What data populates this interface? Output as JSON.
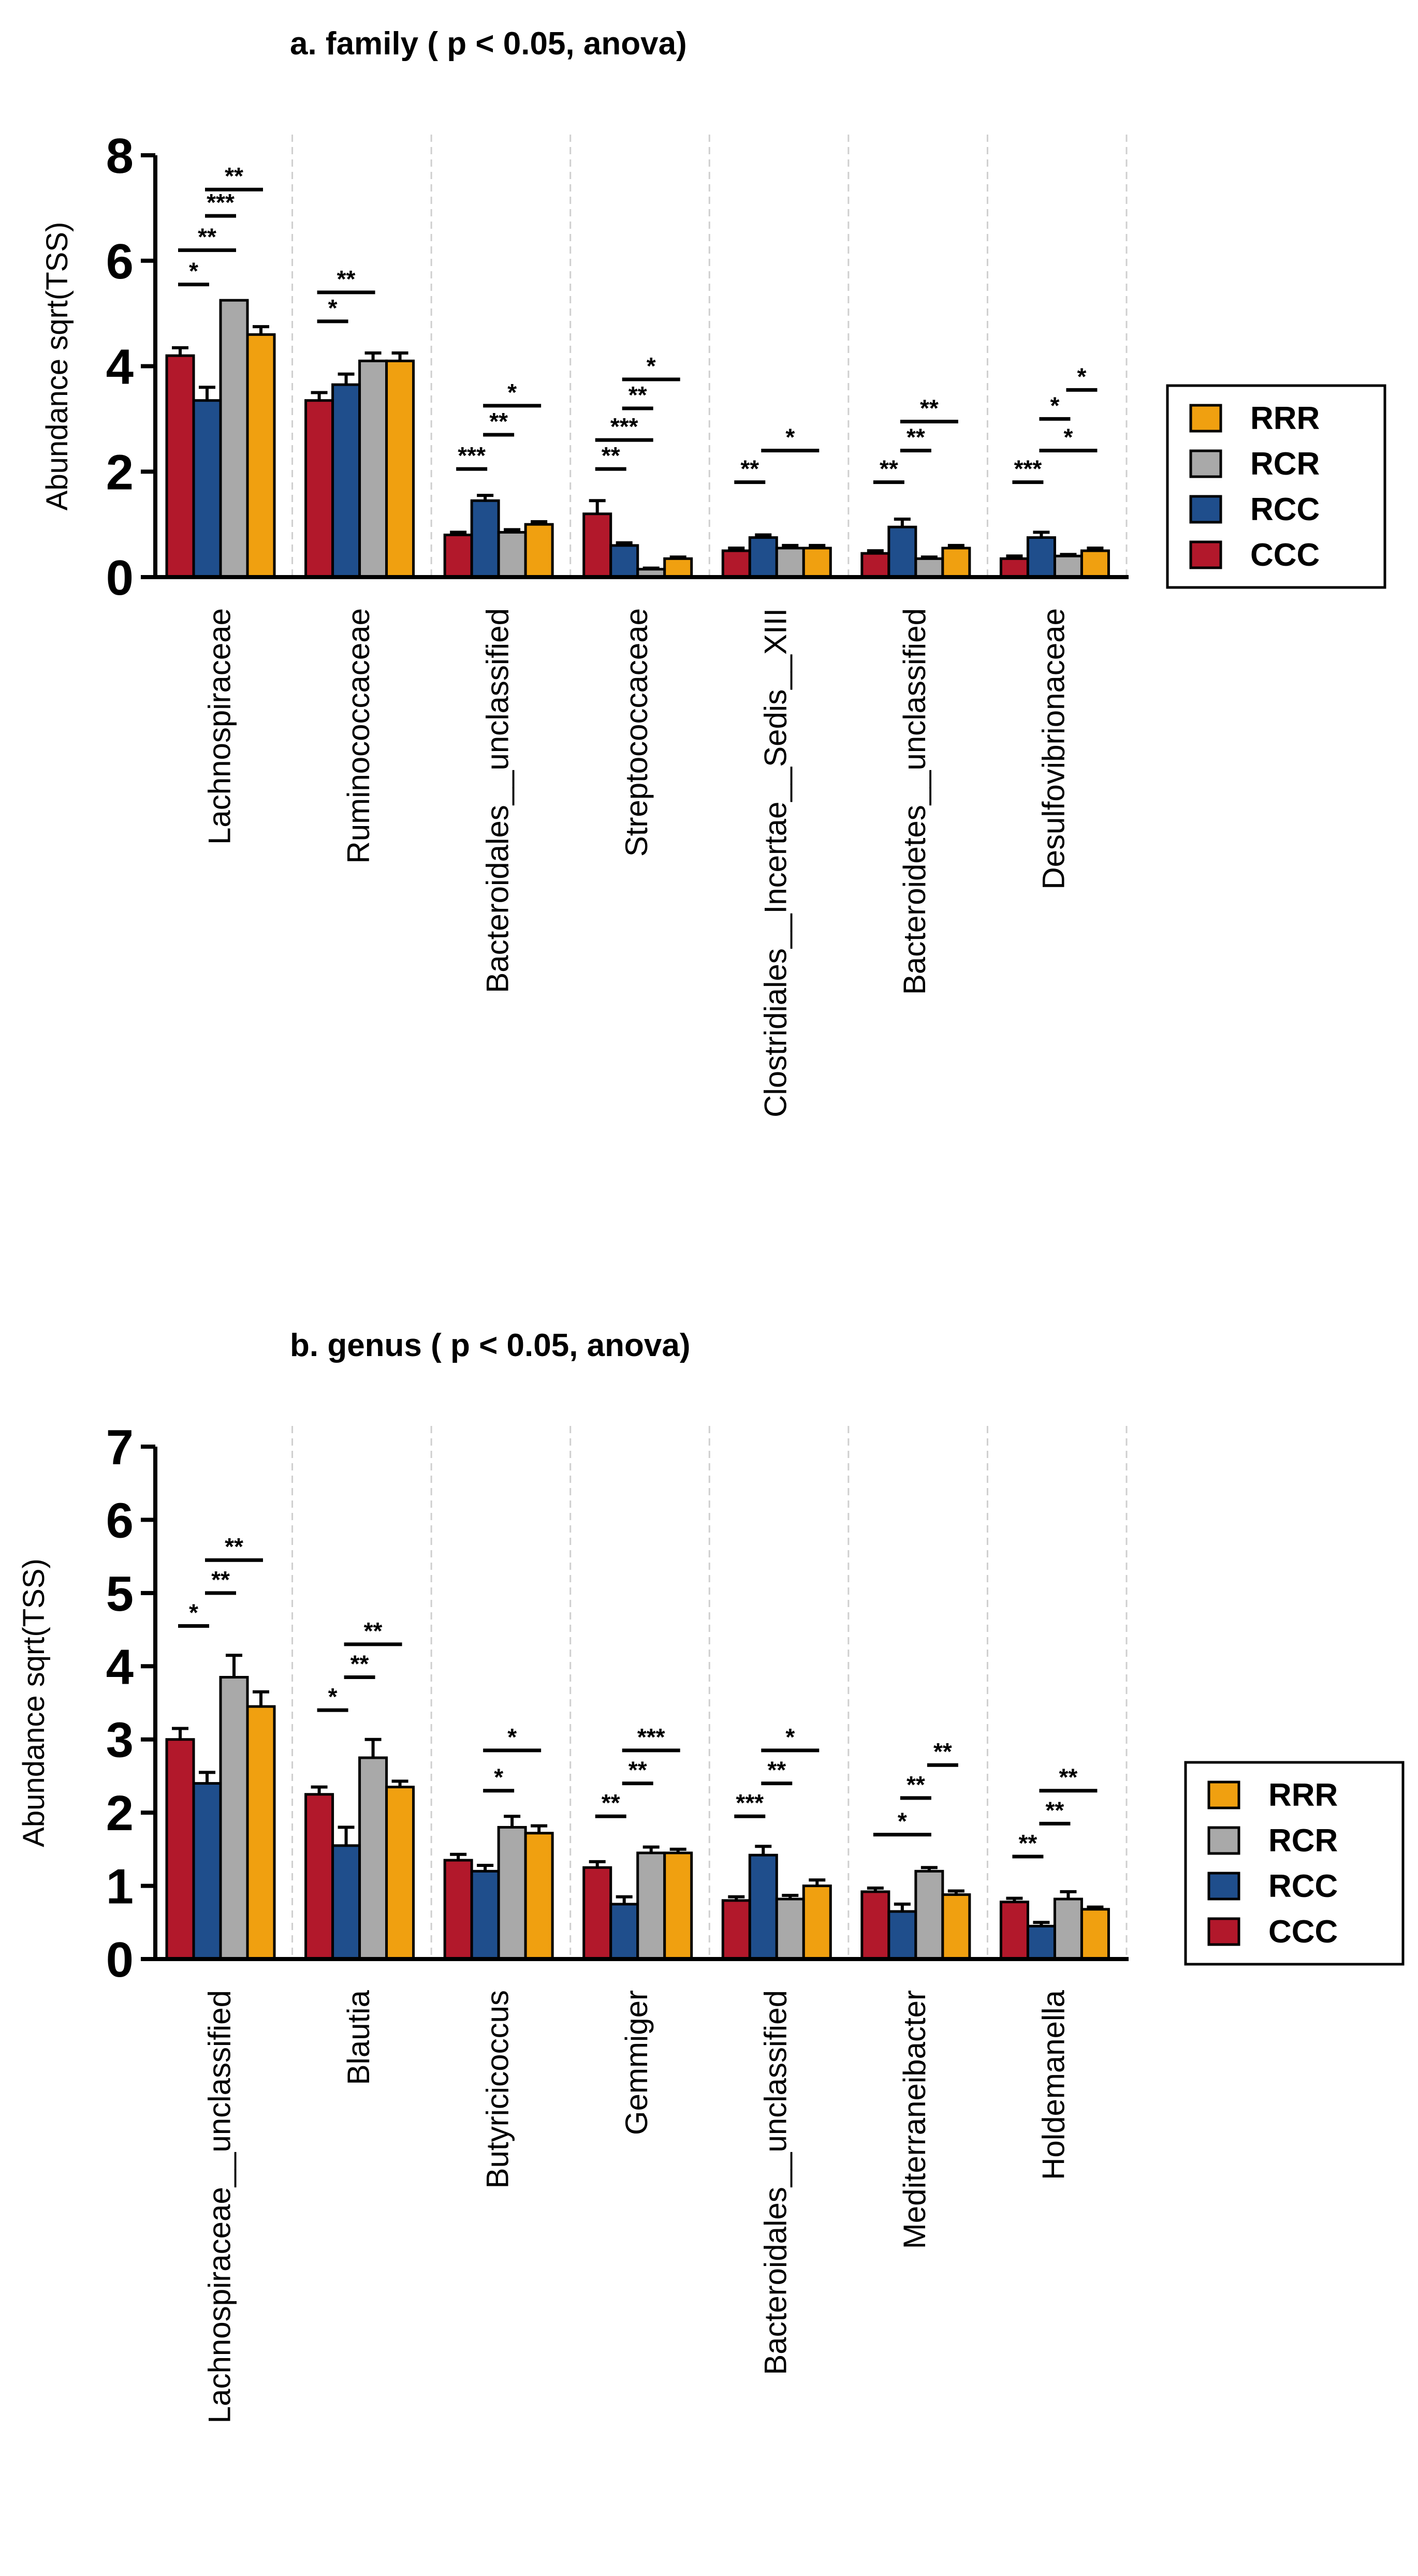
{
  "chart_data": [
    {
      "type": "bar",
      "title": "a. family ( p < 0.05, anova)",
      "xlabel": "",
      "ylabel": "Abundance sqrt(TSS)",
      "ylim": [
        0,
        8
      ],
      "yticks": [
        0,
        2,
        4,
        6,
        8
      ],
      "categories": [
        "Lachnospiraceae",
        "Ruminococcaceae",
        "Bacteroidales__unclassified",
        "Streptococcaceae",
        "Clostridiales__Incertae__Sedis__XIII",
        "Bacteroidetes__unclassified",
        "Desulfovibrionaceae"
      ],
      "series": [
        {
          "name": "CCC",
          "color": "#B2182B",
          "values": [
            4.2,
            3.35,
            0.8,
            1.2,
            0.5,
            0.45,
            0.35
          ],
          "errors": [
            0.15,
            0.15,
            0.05,
            0.25,
            0.05,
            0.05,
            0.05
          ]
        },
        {
          "name": "RCC",
          "color": "#1F4E8C",
          "values": [
            3.35,
            3.65,
            1.45,
            0.6,
            0.75,
            0.95,
            0.75
          ],
          "errors": [
            0.25,
            0.2,
            0.1,
            0.05,
            0.05,
            0.15,
            0.1
          ]
        },
        {
          "name": "RCR",
          "color": "#A9A9A9",
          "values": [
            5.25,
            4.1,
            0.85,
            0.15,
            0.55,
            0.35,
            0.4
          ],
          "errors": [
            0.0,
            0.15,
            0.05,
            0.02,
            0.05,
            0.03,
            0.03
          ]
        },
        {
          "name": "RRR",
          "color": "#F0A010",
          "values": [
            4.6,
            4.1,
            1.0,
            0.35,
            0.55,
            0.55,
            0.5
          ],
          "errors": [
            0.15,
            0.15,
            0.05,
            0.03,
            0.05,
            0.05,
            0.05
          ]
        }
      ],
      "significance": [
        [
          {
            "a": 0,
            "b": 1,
            "level": 5.55,
            "label": "*"
          },
          {
            "a": 0,
            "b": 2,
            "level": 6.2,
            "label": "**"
          },
          {
            "a": 1,
            "b": 2,
            "level": 6.85,
            "label": "***"
          },
          {
            "a": 1,
            "b": 3,
            "level": 7.35,
            "label": "**"
          }
        ],
        [
          {
            "a": 0,
            "b": 1,
            "level": 4.85,
            "label": "*"
          },
          {
            "a": 0,
            "b": 2,
            "level": 5.4,
            "label": "**"
          }
        ],
        [
          {
            "a": 0,
            "b": 1,
            "level": 2.05,
            "label": "***"
          },
          {
            "a": 1,
            "b": 2,
            "level": 2.7,
            "label": "**"
          },
          {
            "a": 1,
            "b": 3,
            "level": 3.25,
            "label": "*"
          }
        ],
        [
          {
            "a": 0,
            "b": 1,
            "level": 2.05,
            "label": "**"
          },
          {
            "a": 0,
            "b": 2,
            "level": 2.6,
            "label": "***"
          },
          {
            "a": 1,
            "b": 2,
            "level": 3.2,
            "label": "**"
          },
          {
            "a": 1,
            "b": 3,
            "level": 3.75,
            "label": "*"
          }
        ],
        [
          {
            "a": 0,
            "b": 1,
            "level": 1.8,
            "label": "**"
          },
          {
            "a": 1,
            "b": 3,
            "level": 2.4,
            "label": "*"
          }
        ],
        [
          {
            "a": 0,
            "b": 1,
            "level": 1.8,
            "label": "**"
          },
          {
            "a": 1,
            "b": 2,
            "level": 2.4,
            "label": "**"
          },
          {
            "a": 1,
            "b": 3,
            "level": 2.95,
            "label": "**"
          }
        ],
        [
          {
            "a": 0,
            "b": 1,
            "level": 1.8,
            "label": "***"
          },
          {
            "a": 1,
            "b": 3,
            "level": 2.4,
            "label": "*"
          },
          {
            "a": 1,
            "b": 2,
            "level": 3.0,
            "label": "*"
          },
          {
            "a": 2,
            "b": 3,
            "level": 3.55,
            "label": "*"
          }
        ]
      ],
      "legend": [
        "RRR",
        "RCR",
        "RCC",
        "CCC"
      ]
    },
    {
      "type": "bar",
      "title": "b. genus ( p < 0.05, anova)",
      "xlabel": "",
      "ylabel": "Abundance sqrt(TSS)",
      "ylim": [
        0,
        7
      ],
      "yticks": [
        0,
        1,
        2,
        3,
        4,
        5,
        6,
        7
      ],
      "categories": [
        "Lachnospiraceae__unclassified",
        "Blautia",
        "Butyricicoccus",
        "Gemmiger",
        "Bacteroidales__unclassified",
        "Mediterraneibacter",
        "Holdemanella"
      ],
      "series": [
        {
          "name": "CCC",
          "color": "#B2182B",
          "values": [
            3.0,
            2.25,
            1.35,
            1.25,
            0.8,
            0.92,
            0.78
          ],
          "errors": [
            0.15,
            0.1,
            0.08,
            0.08,
            0.05,
            0.05,
            0.05
          ]
        },
        {
          "name": "RCC",
          "color": "#1F4E8C",
          "values": [
            2.4,
            1.55,
            1.2,
            0.75,
            1.42,
            0.65,
            0.45
          ],
          "errors": [
            0.15,
            0.25,
            0.08,
            0.1,
            0.12,
            0.1,
            0.05
          ]
        },
        {
          "name": "RCR",
          "color": "#A9A9A9",
          "values": [
            3.85,
            2.75,
            1.8,
            1.45,
            0.82,
            1.2,
            0.82
          ],
          "errors": [
            0.3,
            0.25,
            0.15,
            0.08,
            0.05,
            0.05,
            0.1
          ]
        },
        {
          "name": "RRR",
          "color": "#F0A010",
          "values": [
            3.45,
            2.35,
            1.72,
            1.45,
            1.0,
            0.88,
            0.68
          ],
          "errors": [
            0.2,
            0.08,
            0.1,
            0.05,
            0.08,
            0.05,
            0.03
          ]
        }
      ],
      "significance": [
        [
          {
            "a": 0,
            "b": 1,
            "level": 4.55,
            "label": "*"
          },
          {
            "a": 1,
            "b": 2,
            "level": 5.0,
            "label": "**"
          },
          {
            "a": 1,
            "b": 3,
            "level": 5.45,
            "label": "**"
          }
        ],
        [
          {
            "a": 0,
            "b": 1,
            "level": 3.4,
            "label": "*"
          },
          {
            "a": 1,
            "b": 2,
            "level": 3.85,
            "label": "**"
          },
          {
            "a": 1,
            "b": 3,
            "level": 4.3,
            "label": "**"
          }
        ],
        [
          {
            "a": 1,
            "b": 2,
            "level": 2.3,
            "label": "*"
          },
          {
            "a": 1,
            "b": 3,
            "level": 2.85,
            "label": "*"
          }
        ],
        [
          {
            "a": 0,
            "b": 1,
            "level": 1.95,
            "label": "**"
          },
          {
            "a": 1,
            "b": 2,
            "level": 2.4,
            "label": "**"
          },
          {
            "a": 1,
            "b": 3,
            "level": 2.85,
            "label": "***"
          }
        ],
        [
          {
            "a": 0,
            "b": 1,
            "level": 1.95,
            "label": "***"
          },
          {
            "a": 1,
            "b": 2,
            "level": 2.4,
            "label": "**"
          },
          {
            "a": 1,
            "b": 3,
            "level": 2.85,
            "label": "*"
          }
        ],
        [
          {
            "a": 0,
            "b": 2,
            "level": 1.7,
            "label": "*"
          },
          {
            "a": 1,
            "b": 2,
            "level": 2.2,
            "label": "**"
          },
          {
            "a": 2,
            "b": 3,
            "level": 2.65,
            "label": "**"
          }
        ],
        [
          {
            "a": 0,
            "b": 1,
            "level": 1.4,
            "label": "**"
          },
          {
            "a": 1,
            "b": 2,
            "level": 1.85,
            "label": "**"
          },
          {
            "a": 1,
            "b": 3,
            "level": 2.3,
            "label": "**"
          }
        ]
      ],
      "legend": [
        "RRR",
        "RCR",
        "RCC",
        "CCC"
      ]
    }
  ]
}
